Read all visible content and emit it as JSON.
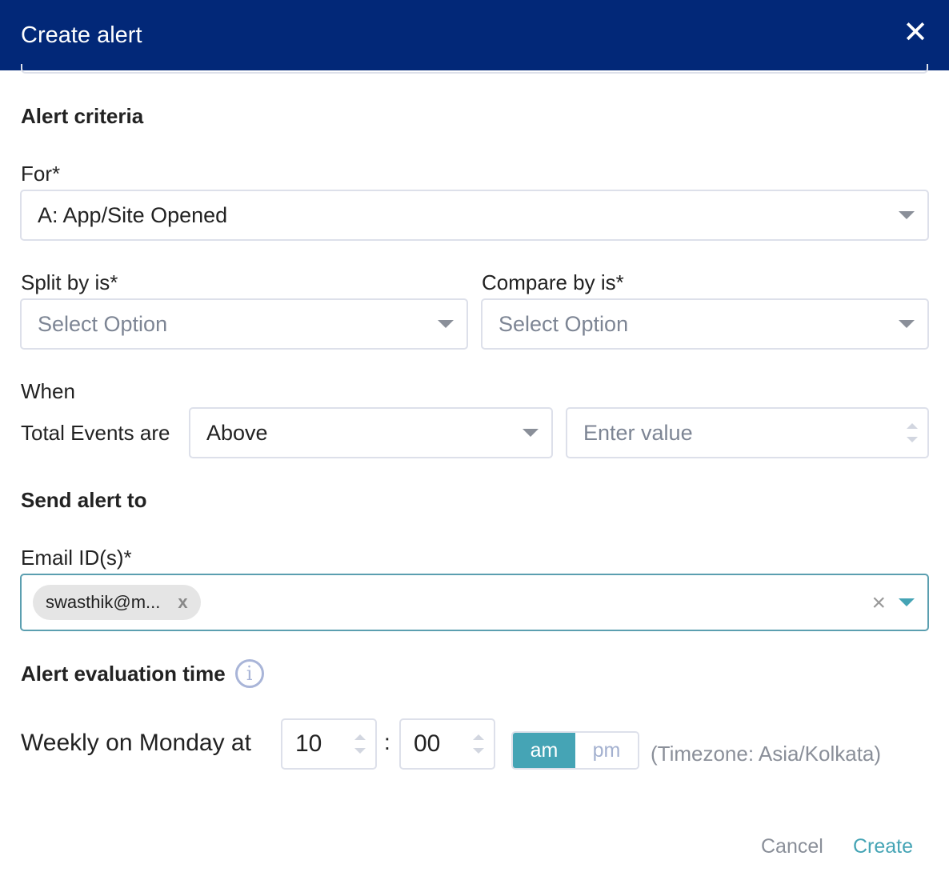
{
  "dialog": {
    "title": "Create alert",
    "close_icon": "close-icon"
  },
  "criteria": {
    "heading": "Alert criteria",
    "for_label": "For*",
    "for_value": "A: App/Site Opened",
    "split_label": "Split by is*",
    "split_placeholder": "Select Option",
    "compare_label": "Compare by is*",
    "compare_placeholder": "Select Option",
    "when_label": "When",
    "total_events_label": "Total Events are",
    "condition_value": "Above",
    "value_placeholder": "Enter value"
  },
  "send": {
    "heading": "Send alert to",
    "email_label": "Email ID(s)*",
    "email_chips": [
      "swasthik@m..."
    ],
    "chip_remove": "x"
  },
  "evaluation": {
    "heading": "Alert evaluation time",
    "schedule_label": "Weekly on Monday at",
    "hour": "10",
    "separator": ":",
    "minute": "00",
    "am": "am",
    "pm": "pm",
    "selected_period": "am",
    "timezone": "(Timezone: Asia/Kolkata)"
  },
  "footer": {
    "cancel": "Cancel",
    "create": "Create"
  },
  "colors": {
    "header": "#022878",
    "accent": "#45a4b5"
  }
}
